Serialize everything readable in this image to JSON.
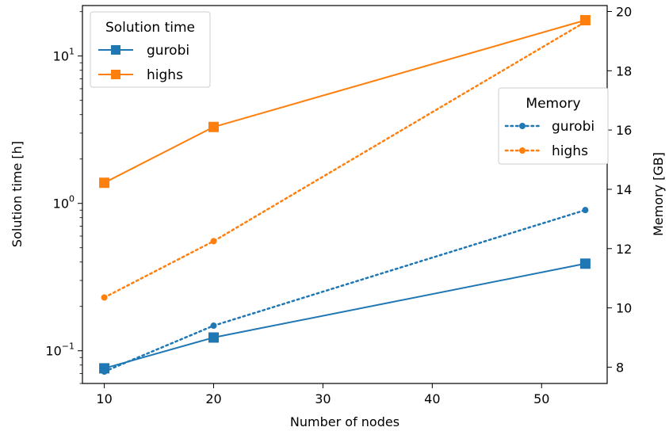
{
  "chart_data": {
    "type": "line",
    "x": [
      10,
      20,
      54
    ],
    "xlabel": "Number of nodes",
    "xlim": [
      8,
      56
    ],
    "xticks": [
      10,
      20,
      30,
      40,
      50
    ],
    "left_axis": {
      "label": "Solution time [h]",
      "scale": "log",
      "ylim": [
        0.06,
        22
      ],
      "ticks": [
        {
          "value": 0.1,
          "base": "10",
          "exp": "−1"
        },
        {
          "value": 1,
          "base": "10",
          "exp": "0"
        },
        {
          "value": 10,
          "base": "10",
          "exp": "1"
        }
      ]
    },
    "right_axis": {
      "label": "Memory [GB]",
      "scale": "linear",
      "ylim": [
        7.45,
        20.2
      ],
      "ticks": [
        8,
        10,
        12,
        14,
        16,
        18,
        20
      ]
    },
    "series": [
      {
        "name": "gurobi",
        "group": "solution_time",
        "axis": "left",
        "color": "#1f77b4",
        "style": "solid",
        "marker": "square",
        "values": [
          0.076,
          0.123,
          0.39
        ]
      },
      {
        "name": "highs",
        "group": "solution_time",
        "axis": "left",
        "color": "#ff7f0e",
        "style": "solid",
        "marker": "square",
        "values": [
          1.38,
          3.3,
          17.5
        ]
      },
      {
        "name": "gurobi",
        "group": "memory",
        "axis": "right",
        "color": "#1f77b4",
        "style": "dotted",
        "marker": "circle",
        "values": [
          7.85,
          9.4,
          13.3
        ]
      },
      {
        "name": "highs",
        "group": "memory",
        "axis": "right",
        "color": "#ff7f0e",
        "style": "dotted",
        "marker": "circle",
        "values": [
          10.35,
          12.25,
          19.65
        ]
      }
    ],
    "legends": [
      {
        "title": "Solution time",
        "group": "solution_time",
        "placement": "top-left",
        "entries": [
          "gurobi",
          "highs"
        ]
      },
      {
        "title": "Memory",
        "group": "memory",
        "placement": "center-right",
        "entries": [
          "gurobi",
          "highs"
        ]
      }
    ],
    "grid": false
  }
}
